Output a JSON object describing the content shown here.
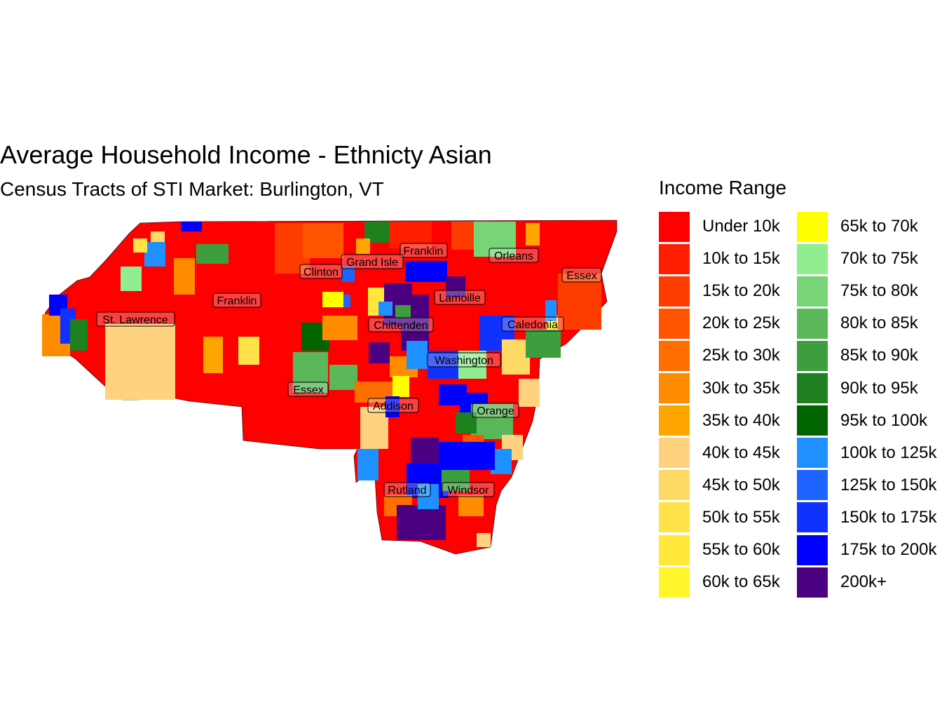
{
  "title": "Average Household Income - Ethnicty Asian",
  "subtitle": "Census Tracts of STI Market: Burlington, VT",
  "legend": {
    "title": "Income Range",
    "items": [
      {
        "label": "Under 10k",
        "color": "#FF0000"
      },
      {
        "label": "10k to 15k",
        "color": "#FF1E00"
      },
      {
        "label": "15k to 20k",
        "color": "#FF3C00"
      },
      {
        "label": "20k to 25k",
        "color": "#FF5500"
      },
      {
        "label": "25k to 30k",
        "color": "#FF6E00"
      },
      {
        "label": "30k to 35k",
        "color": "#FF8C00"
      },
      {
        "label": "35k to 40k",
        "color": "#FFA500"
      },
      {
        "label": "40k to 45k",
        "color": "#FFD27F"
      },
      {
        "label": "45k to 50k",
        "color": "#FFD966"
      },
      {
        "label": "50k to 55k",
        "color": "#FFE14A"
      },
      {
        "label": "55k to 60k",
        "color": "#FFE83A"
      },
      {
        "label": "60k to 65k",
        "color": "#FFF52A"
      },
      {
        "label": "65k to 70k",
        "color": "#FFFF00"
      },
      {
        "label": "70k to 75k",
        "color": "#90EE90"
      },
      {
        "label": "75k to 80k",
        "color": "#77D477"
      },
      {
        "label": "80k to 85k",
        "color": "#5AB75A"
      },
      {
        "label": "85k to 90k",
        "color": "#3C9E3C"
      },
      {
        "label": "90k to 95k",
        "color": "#1E801E"
      },
      {
        "label": "95k to 100k",
        "color": "#006400"
      },
      {
        "label": "100k to 125k",
        "color": "#1E90FF"
      },
      {
        "label": "125k to 150k",
        "color": "#1E64FF"
      },
      {
        "label": "150k to 175k",
        "color": "#0F32FF"
      },
      {
        "label": "175k to 200k",
        "color": "#0000FF"
      },
      {
        "label": "200k+",
        "color": "#4B0082"
      }
    ]
  },
  "counties": [
    "Franklin",
    "Orleans",
    "Essex",
    "Clinton",
    "Grand Isle",
    "Franklin",
    "Lamoille",
    "St. Lawrence",
    "Chittenden",
    "Caledonia",
    "Washington",
    "Essex",
    "Addison",
    "Orange",
    "Rutland",
    "Windsor"
  ]
}
